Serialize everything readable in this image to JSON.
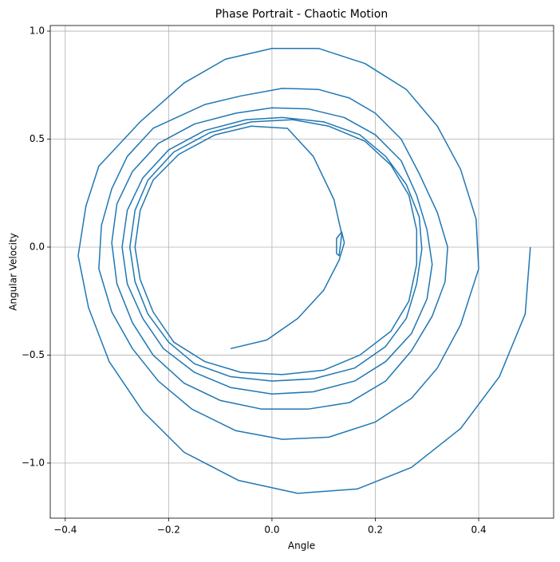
{
  "chart_data": {
    "type": "line",
    "title": "Phase Portrait - Chaotic Motion",
    "x_label": "Angle",
    "y_label": "Angular Velocity",
    "x": [
      0.5,
      0.49,
      0.44,
      0.365,
      0.27,
      0.165,
      0.05,
      -0.065,
      -0.17,
      -0.25,
      -0.315,
      -0.355,
      -0.375,
      -0.36,
      -0.335,
      -0.255,
      -0.17,
      -0.09,
      0,
      0.09,
      0.18,
      0.26,
      0.32,
      0.365,
      0.395,
      0.4,
      0.365,
      0.32,
      0.27,
      0.2,
      0.11,
      0.02,
      -0.07,
      -0.155,
      -0.22,
      -0.27,
      -0.31,
      -0.335,
      -0.33,
      -0.31,
      -0.28,
      -0.23,
      -0.13,
      -0.06,
      0.02,
      0.09,
      0.15,
      0.2,
      0.25,
      0.285,
      0.32,
      0.34,
      0.335,
      0.31,
      0.27,
      0.22,
      0.15,
      0.07,
      -0.02,
      -0.1,
      -0.17,
      -0.23,
      -0.27,
      -0.3,
      -0.31,
      -0.3,
      -0.27,
      -0.22,
      -0.15,
      -0.07,
      0,
      0.07,
      0.14,
      0.2,
      0.25,
      0.28,
      0.3,
      0.31,
      0.3,
      0.27,
      0.22,
      0.16,
      0.08,
      0,
      -0.08,
      -0.15,
      -0.21,
      -0.25,
      -0.28,
      -0.29,
      -0.28,
      -0.25,
      -0.2,
      -0.13,
      -0.05,
      0.02,
      0.1,
      0.17,
      0.22,
      0.26,
      0.285,
      0.29,
      0.28,
      0.26,
      0.22,
      0.16,
      0.08,
      0,
      -0.08,
      -0.15,
      -0.2,
      -0.24,
      -0.265,
      -0.275,
      -0.265,
      -0.24,
      -0.19,
      -0.12,
      -0.04,
      0.04,
      0.11,
      0.18,
      0.23,
      0.265,
      0.28,
      0.28,
      0.265,
      0.23,
      0.17,
      0.1,
      0.02,
      -0.06,
      -0.13,
      -0.19,
      -0.23,
      -0.255,
      -0.265,
      -0.255,
      -0.23,
      -0.18,
      -0.11,
      -0.04,
      0.03,
      0.08,
      0.12,
      0.135,
      0.13,
      0.125,
      0.125,
      0.135,
      0.14,
      0.13,
      0.1,
      0.05,
      -0.01,
      -0.08
    ],
    "series": [
      {
        "color": "#1f77b4",
        "values": [
          0,
          -0.31,
          -0.6,
          -0.84,
          -1.02,
          -1.12,
          -1.14,
          -1.08,
          -0.95,
          -0.76,
          -0.53,
          -0.28,
          -0.04,
          0.19,
          0.375,
          0.58,
          0.76,
          0.87,
          0.92,
          0.92,
          0.85,
          0.73,
          0.56,
          0.36,
          0.13,
          -0.1,
          -0.36,
          -0.56,
          -0.7,
          -0.81,
          -0.88,
          -0.89,
          -0.85,
          -0.75,
          -0.62,
          -0.47,
          -0.3,
          -0.1,
          0.1,
          0.27,
          0.42,
          0.55,
          0.66,
          0.7,
          0.735,
          0.73,
          0.69,
          0.62,
          0.5,
          0.34,
          0.16,
          0,
          -0.16,
          -0.32,
          -0.48,
          -0.62,
          -0.72,
          -0.75,
          -0.75,
          -0.71,
          -0.63,
          -0.5,
          -0.35,
          -0.17,
          0.02,
          0.2,
          0.35,
          0.48,
          0.57,
          0.62,
          0.645,
          0.64,
          0.6,
          0.52,
          0.4,
          0.24,
          0.08,
          -0.08,
          -0.24,
          -0.4,
          -0.53,
          -0.62,
          -0.67,
          -0.68,
          -0.65,
          -0.58,
          -0.47,
          -0.33,
          -0.17,
          0,
          0.17,
          0.32,
          0.45,
          0.54,
          0.59,
          0.6,
          0.58,
          0.52,
          0.42,
          0.29,
          0.14,
          -0.01,
          -0.17,
          -0.33,
          -0.46,
          -0.56,
          -0.61,
          -0.62,
          -0.6,
          -0.54,
          -0.44,
          -0.31,
          -0.16,
          0,
          0.17,
          0.31,
          0.44,
          0.53,
          0.58,
          0.59,
          0.56,
          0.49,
          0.38,
          0.24,
          0.08,
          -0.08,
          -0.25,
          -0.39,
          -0.5,
          -0.57,
          -0.59,
          -0.58,
          -0.53,
          -0.44,
          -0.3,
          -0.15,
          0,
          0.17,
          0.31,
          0.43,
          0.52,
          0.56,
          0.55,
          0.42,
          0.22,
          0.06,
          -0.04,
          -0.03,
          0.04,
          0.07,
          0.02,
          -0.06,
          -0.2,
          -0.33,
          -0.43,
          -0.47
        ]
      }
    ],
    "xlim": [
      -0.429,
      0.545
    ],
    "ylim": [
      -1.255,
      1.026
    ],
    "xticks": [
      {
        "value": -0.4,
        "label": "−0.4"
      },
      {
        "value": -0.2,
        "label": "−0.2"
      },
      {
        "value": 0,
        "label": "0.0"
      },
      {
        "value": 0.2,
        "label": "0.2"
      },
      {
        "value": 0.4,
        "label": "0.4"
      }
    ],
    "yticks": [
      {
        "value": -1,
        "label": "−1.0"
      },
      {
        "value": -0.5,
        "label": "−0.5"
      },
      {
        "value": 0,
        "label": "0.0"
      },
      {
        "value": 0.5,
        "label": "0.5"
      },
      {
        "value": 1,
        "label": "1.0"
      }
    ],
    "grid": true
  }
}
